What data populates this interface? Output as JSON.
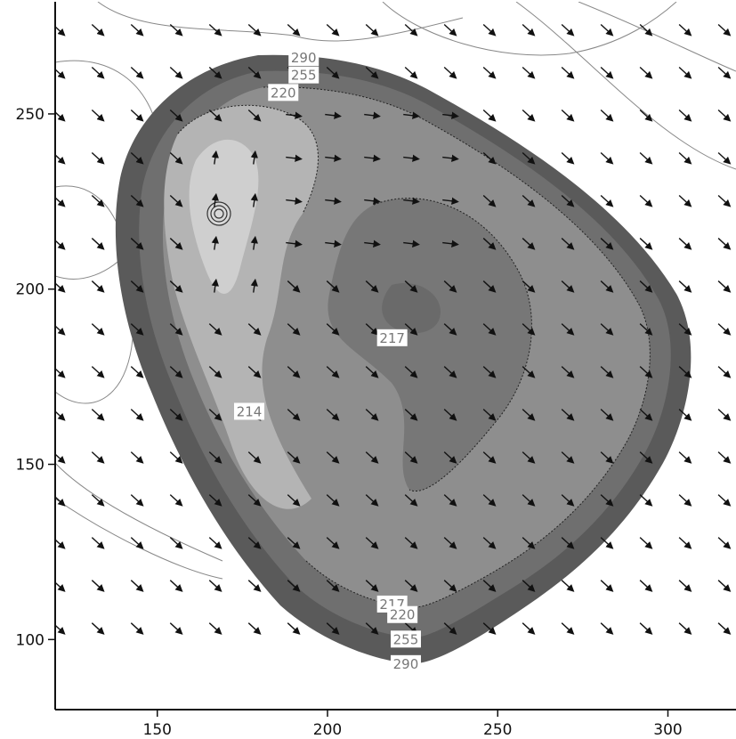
{
  "chart_data": {
    "type": "contour",
    "title": "",
    "xlabel": "",
    "ylabel": "",
    "xlim": [
      120,
      320
    ],
    "ylim": [
      80,
      282
    ],
    "xticks": [
      150,
      200,
      250,
      300
    ],
    "yticks": [
      100,
      150,
      200,
      250
    ],
    "grid": false,
    "legend": "none",
    "contour_labels": [
      {
        "text": "290",
        "x": 193,
        "y": 266
      },
      {
        "text": "255",
        "x": 193,
        "y": 261
      },
      {
        "text": "220",
        "x": 187,
        "y": 256
      },
      {
        "text": "217",
        "x": 219,
        "y": 186
      },
      {
        "text": "214",
        "x": 177,
        "y": 165
      },
      {
        "text": "217",
        "x": 219,
        "y": 110
      },
      {
        "text": "220",
        "x": 222,
        "y": 107
      },
      {
        "text": "255",
        "x": 223,
        "y": 100
      },
      {
        "text": "290",
        "x": 223,
        "y": 93
      }
    ],
    "shading_levels": [
      {
        "level": 290,
        "color": "#5a5a5a"
      },
      {
        "level": 255,
        "color": "#6f6f6f"
      },
      {
        "level": 220,
        "color": "#8a8a8a"
      },
      {
        "level": 217,
        "color": "#7a7a7a"
      },
      {
        "level": 214,
        "color": "#b0b0b0"
      }
    ],
    "vector_field": {
      "description_units": "wind direction arrows, uniform grid",
      "x_start": 121,
      "x_step": 11.5,
      "count_x": 18,
      "y_start": 274,
      "y_step": 12.2,
      "count_y": 15,
      "default_direction": "south-east",
      "east_region_direction": "east"
    }
  }
}
